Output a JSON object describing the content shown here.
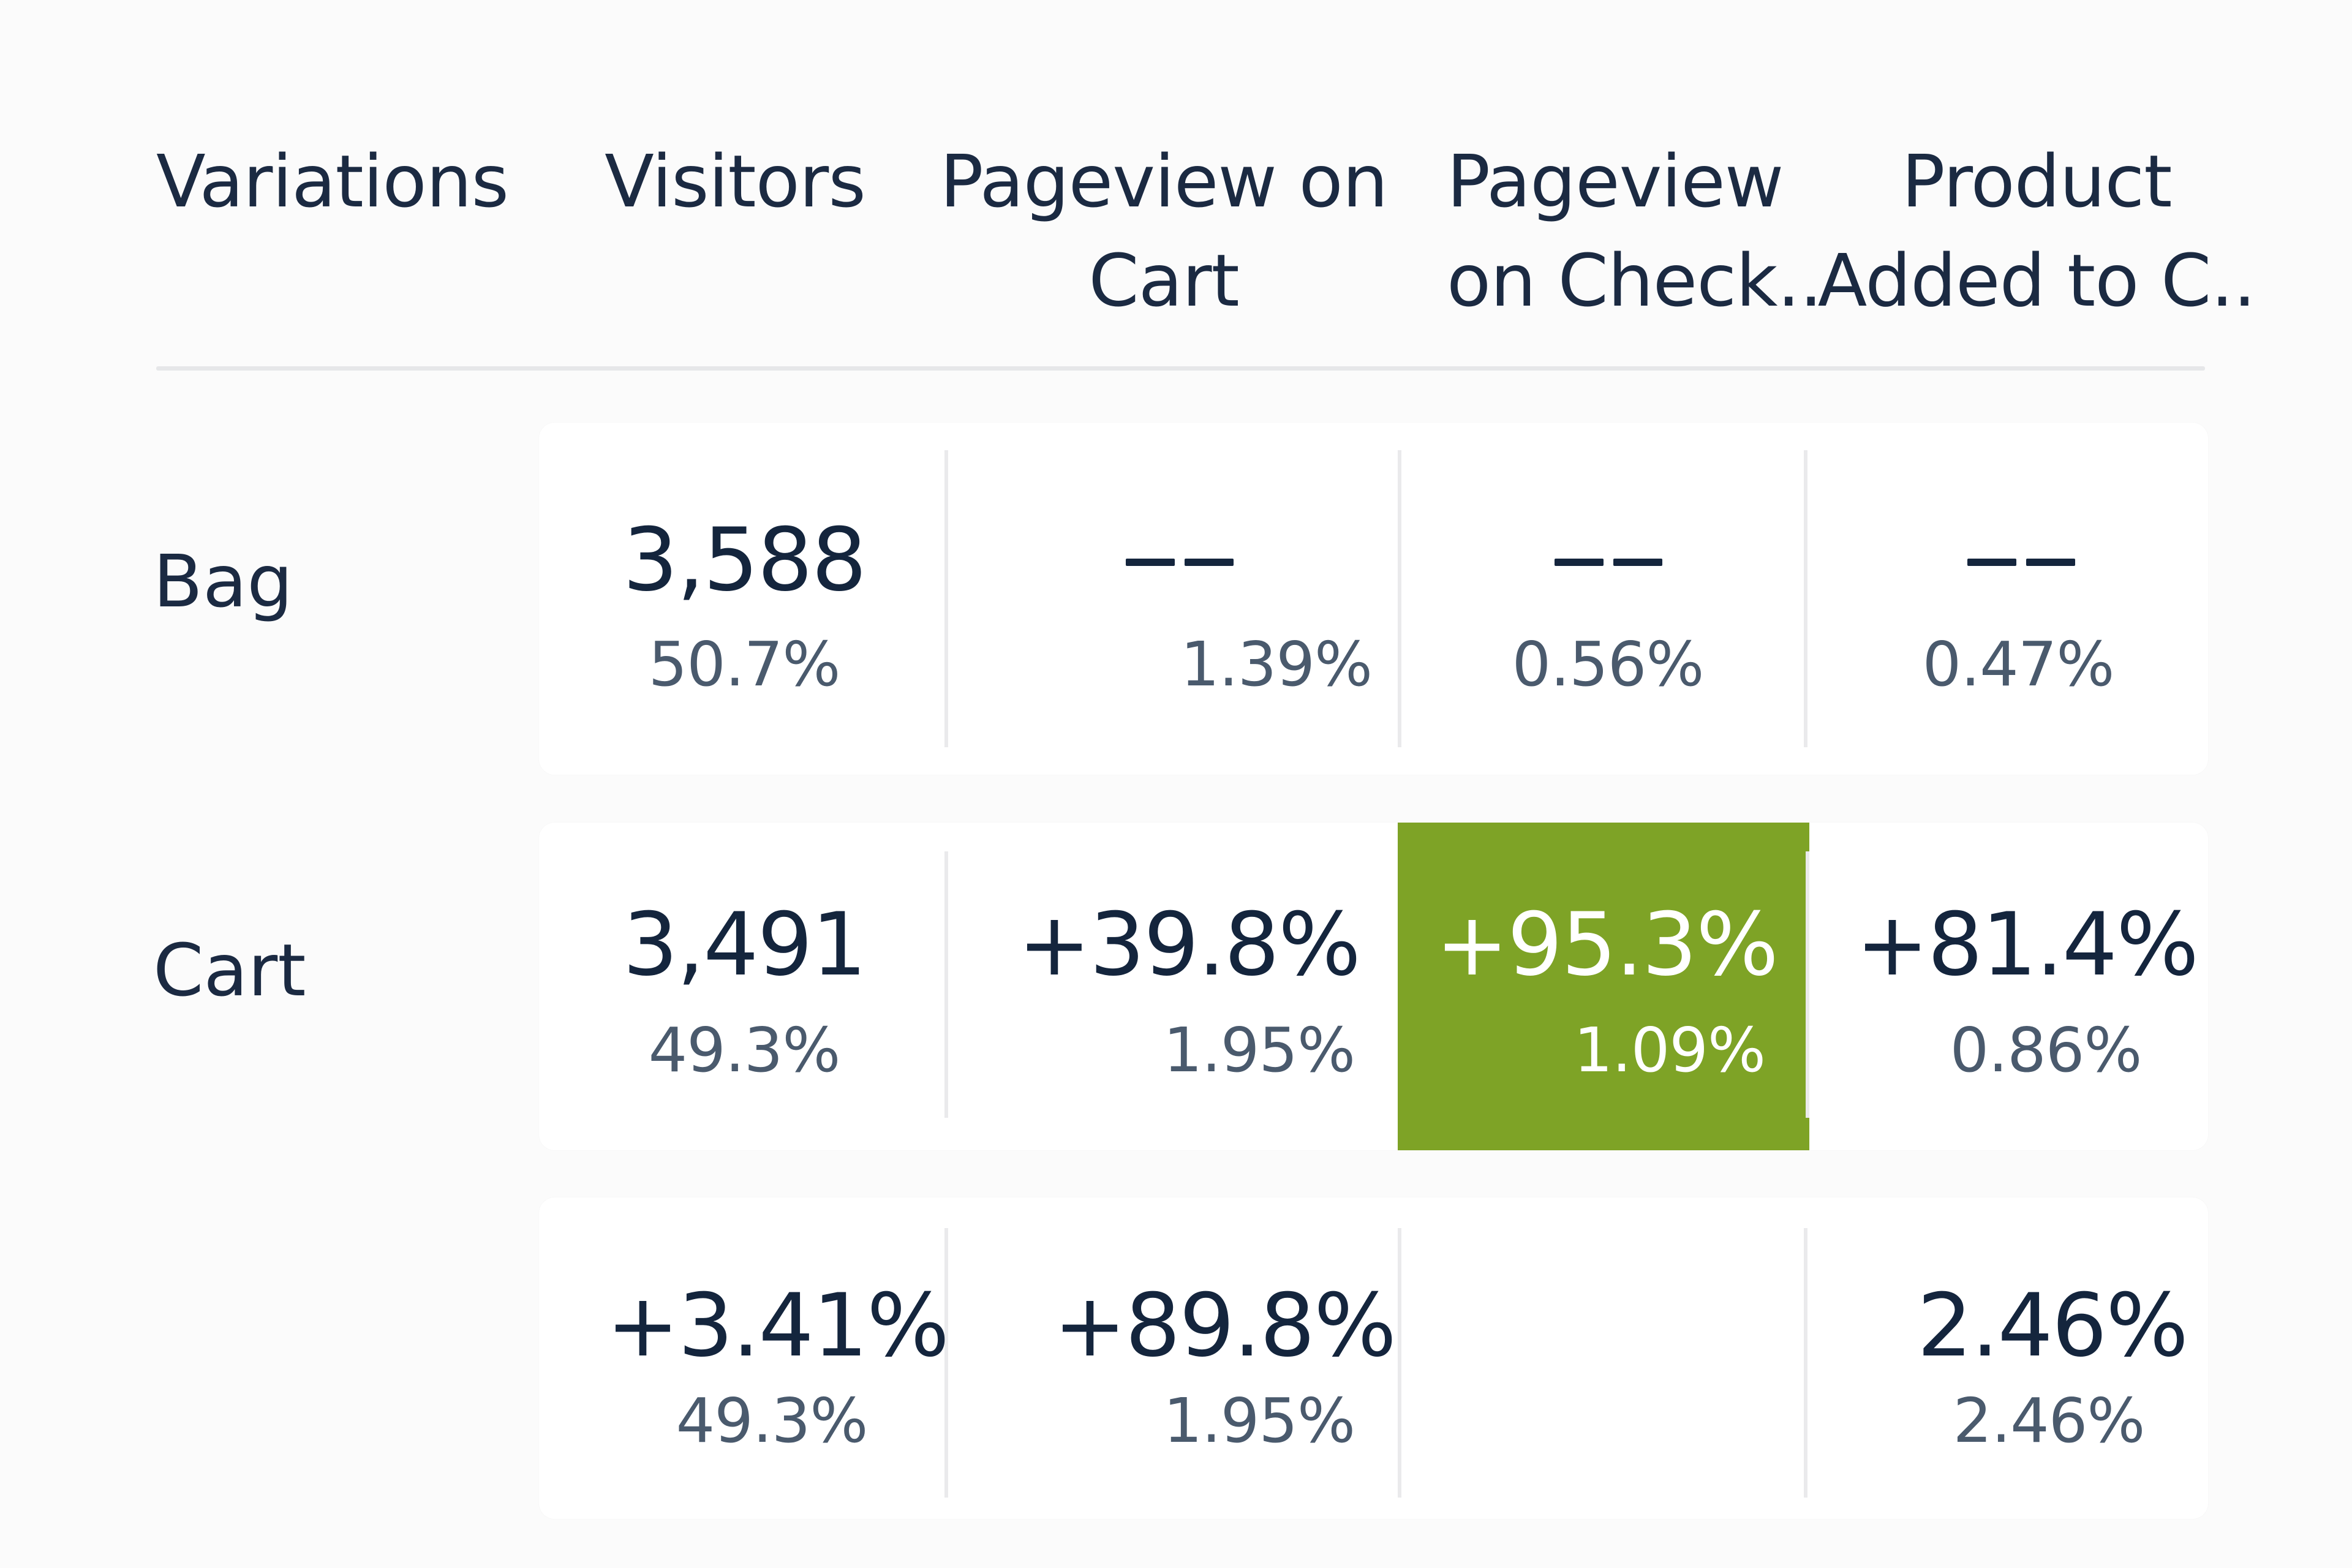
{
  "header": {
    "variations": "Variations",
    "visitors": "Visitors",
    "pageview_cart": [
      "Pageview on",
      "Cart"
    ],
    "pageview_checkout": [
      "Pageview",
      "on Check.."
    ],
    "product_added": [
      "Product",
      "Added to C.."
    ]
  },
  "rows": [
    {
      "label": "Bag",
      "visitors": {
        "value": "3,588",
        "share": "50.7%"
      },
      "pageview_cart": {
        "value": "––",
        "rate": "1.39%"
      },
      "pageview_checkout": {
        "value": "––",
        "rate": "0.56%"
      },
      "product_added": {
        "value": "––",
        "rate": "0.47%"
      }
    },
    {
      "label": "Cart",
      "visitors": {
        "value": "3,491",
        "share": "49.3%"
      },
      "pageview_cart": {
        "value": "+39.8%",
        "rate": "1.95%"
      },
      "pageview_checkout": {
        "value": "+95.3%",
        "rate": "1.09%"
      },
      "product_added": {
        "value": "+81.4%",
        "rate": "0.86%"
      }
    },
    {
      "label": "",
      "visitors": {
        "value": "+3.41%",
        "share": "49.3%"
      },
      "pageview_cart": {
        "value": "+89.8%",
        "rate": "1.95%"
      },
      "pageview_checkout": {
        "value": "",
        "rate": ""
      },
      "product_added": {
        "value": "2.46%",
        "rate": "2.46%"
      }
    }
  ],
  "colors": {
    "background": "#fbfbfb",
    "card": "#ffffff",
    "text_primary": "#14253d",
    "text_secondary": "#4a5a6d",
    "highlight_positive": "#7ea326",
    "divider": "#e6e7e9"
  },
  "icons": {
    "empty_value": "dash-icon"
  }
}
